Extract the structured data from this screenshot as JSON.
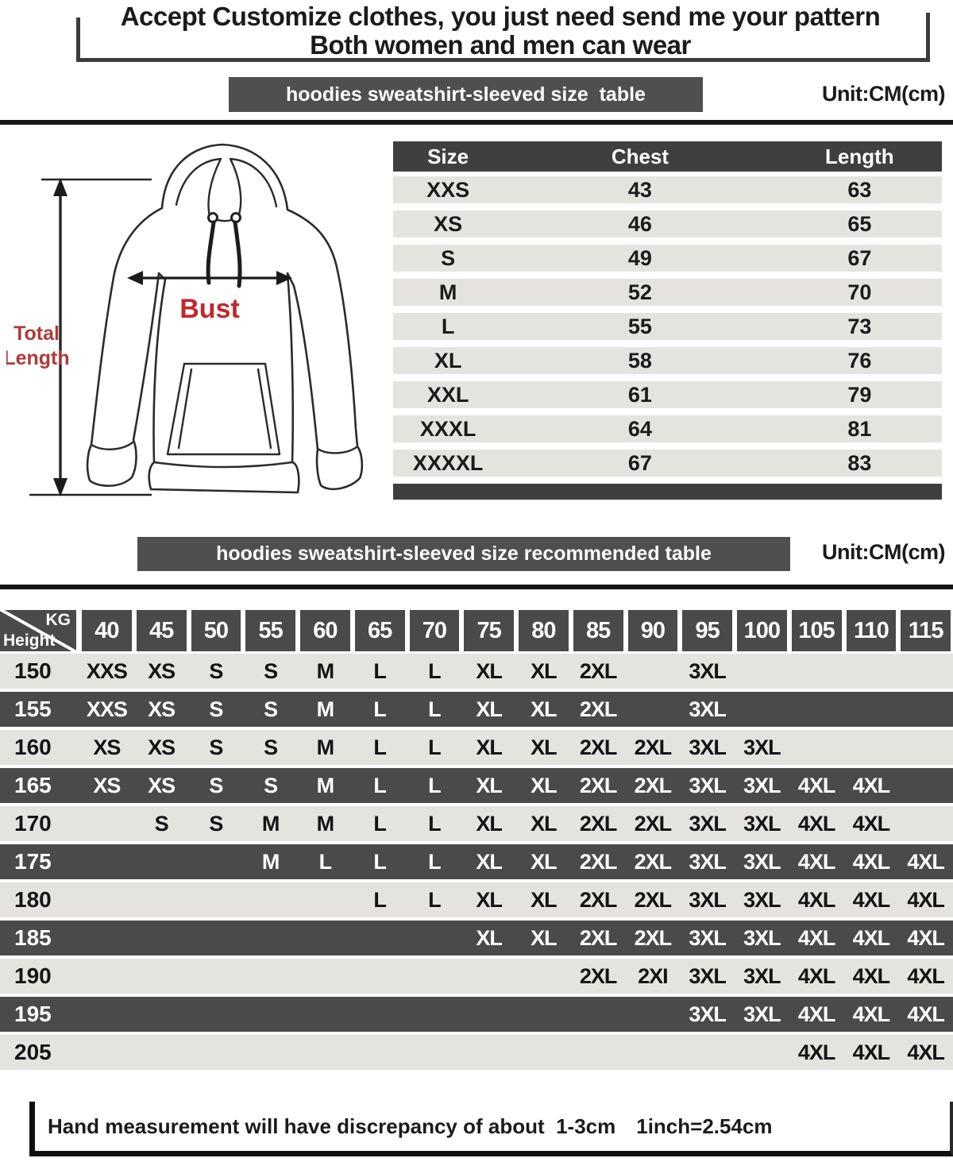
{
  "header": {
    "line1": "Accept Customize clothes, you just need send me your pattern",
    "line2": "Both women and men can wear"
  },
  "size_section": {
    "banner": "hoodies sweatshirt-sleeved size  table",
    "unit": "Unit:CM(cm)",
    "diagram": {
      "bust": "Bust",
      "total": "Total",
      "length": "Length"
    },
    "table": {
      "columns": [
        "Size",
        "Chest",
        "Length"
      ],
      "rows": [
        [
          "XXS",
          "43",
          "63"
        ],
        [
          "XS",
          "46",
          "65"
        ],
        [
          "S",
          "49",
          "67"
        ],
        [
          "M",
          "52",
          "70"
        ],
        [
          "L",
          "55",
          "73"
        ],
        [
          "XL",
          "58",
          "76"
        ],
        [
          "XXL",
          "61",
          "79"
        ],
        [
          "XXXL",
          "64",
          "81"
        ],
        [
          "XXXXL",
          "67",
          "83"
        ]
      ]
    }
  },
  "recommend_section": {
    "banner": "hoodies sweatshirt-sleeved size recommended table",
    "unit": "Unit:CM(cm)",
    "corner_top": "KG",
    "corner_bottom": "Height",
    "weights": [
      "40",
      "45",
      "50",
      "55",
      "60",
      "65",
      "70",
      "75",
      "80",
      "85",
      "90",
      "95",
      "100",
      "105",
      "110",
      "115"
    ],
    "rows": [
      {
        "height": "150",
        "cells": [
          "XXS",
          "XS",
          "S",
          "S",
          "M",
          "L",
          "L",
          "XL",
          "XL",
          "2XL",
          "",
          "3XL",
          "",
          "",
          "",
          ""
        ]
      },
      {
        "height": "155",
        "cells": [
          "XXS",
          "XS",
          "S",
          "S",
          "M",
          "L",
          "L",
          "XL",
          "XL",
          "2XL",
          "",
          "3XL",
          "",
          "",
          "",
          ""
        ]
      },
      {
        "height": "160",
        "cells": [
          "XS",
          "XS",
          "S",
          "S",
          "M",
          "L",
          "L",
          "XL",
          "XL",
          "2XL",
          "2XL",
          "3XL",
          "3XL",
          "",
          "",
          ""
        ]
      },
      {
        "height": "165",
        "cells": [
          "XS",
          "XS",
          "S",
          "S",
          "M",
          "L",
          "L",
          "XL",
          "XL",
          "2XL",
          "2XL",
          "3XL",
          "3XL",
          "4XL",
          "4XL",
          ""
        ]
      },
      {
        "height": "170",
        "cells": [
          "",
          "S",
          "S",
          "M",
          "M",
          "L",
          "L",
          "XL",
          "XL",
          "2XL",
          "2XL",
          "3XL",
          "3XL",
          "4XL",
          "4XL",
          ""
        ]
      },
      {
        "height": "175",
        "cells": [
          "",
          "",
          "",
          "M",
          "L",
          "L",
          "L",
          "XL",
          "XL",
          "2XL",
          "2XL",
          "3XL",
          "3XL",
          "4XL",
          "4XL",
          "4XL"
        ]
      },
      {
        "height": "180",
        "cells": [
          "",
          "",
          "",
          "",
          "",
          "L",
          "L",
          "XL",
          "XL",
          "2XL",
          "2XL",
          "3XL",
          "3XL",
          "4XL",
          "4XL",
          "4XL"
        ]
      },
      {
        "height": "185",
        "cells": [
          "",
          "",
          "",
          "",
          "",
          "",
          "",
          "XL",
          "XL",
          "2XL",
          "2XL",
          "3XL",
          "3XL",
          "4XL",
          "4XL",
          "4XL"
        ]
      },
      {
        "height": "190",
        "cells": [
          "",
          "",
          "",
          "",
          "",
          "",
          "",
          "",
          "",
          "2XL",
          "2XI",
          "3XL",
          "3XL",
          "4XL",
          "4XL",
          "4XL"
        ]
      },
      {
        "height": "195",
        "cells": [
          "",
          "",
          "",
          "",
          "",
          "",
          "",
          "",
          "",
          "",
          "",
          "3XL",
          "3XL",
          "4XL",
          "4XL",
          "4XL"
        ]
      },
      {
        "height": "205",
        "cells": [
          "",
          "",
          "",
          "",
          "",
          "",
          "",
          "",
          "",
          "",
          "",
          "",
          "",
          "4XL",
          "4XL",
          "4XL"
        ]
      }
    ]
  },
  "footer": {
    "note": "Hand measurement will have discrepancy of about  1-3cm",
    "conversion": "1inch=2.54cm"
  },
  "colors": {
    "dark": "#4a4a4a",
    "banner": "#4f4f4f",
    "table_header": "#3f3f3f",
    "light_row": "#e5e3e0",
    "rule": "#161616",
    "red_bust": "#c1272d",
    "red_dim": "#ad3a3a"
  }
}
